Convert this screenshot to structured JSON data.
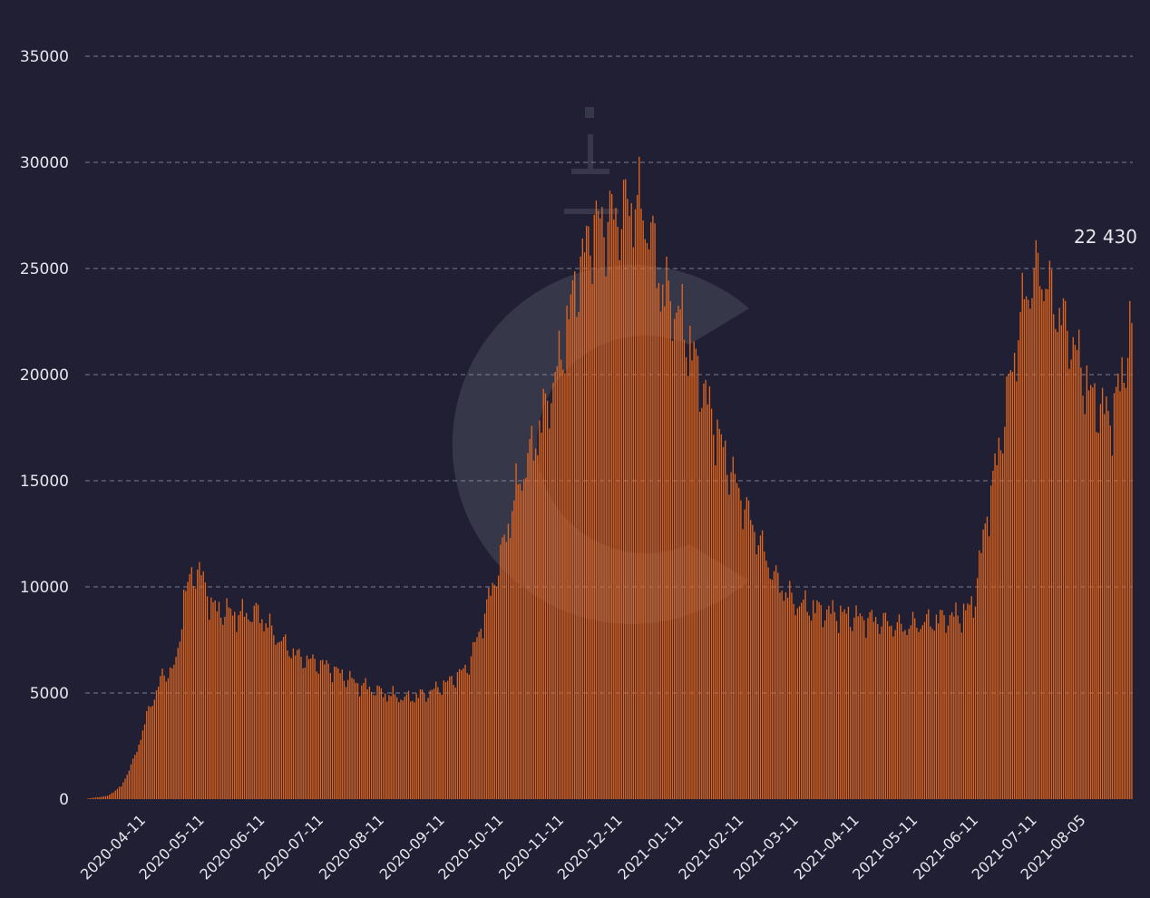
{
  "chart_data": {
    "type": "bar",
    "title": "",
    "xlabel": "",
    "ylabel": "",
    "ylim": [
      0,
      35000
    ],
    "yticks": [
      "0",
      "5000",
      "10000",
      "15000",
      "20000",
      "25000",
      "30000",
      "35000"
    ],
    "ytick_values": [
      0,
      5000,
      10000,
      15000,
      20000,
      25000,
      30000,
      35000
    ],
    "grid": true,
    "x_start_date": "2020-03-15",
    "x_end_date": "2021-08-31",
    "x_tick_labels": [
      "2020-04-11",
      "2020-05-11",
      "2020-06-11",
      "2020-07-11",
      "2020-08-11",
      "2020-09-11",
      "2020-10-11",
      "2020-11-11",
      "2020-12-11",
      "2021-01-11",
      "2021-02-11",
      "2021-03-11",
      "2021-04-11",
      "2021-05-11",
      "2021-06-11",
      "2021-07-11",
      "2021-08-05"
    ],
    "last_value_label": "22 430",
    "bar_color": "#e0651f",
    "background_color": "#201f33",
    "anchors": [
      [
        "2020-03-15",
        30
      ],
      [
        "2020-03-25",
        150
      ],
      [
        "2020-04-01",
        600
      ],
      [
        "2020-04-08",
        2000
      ],
      [
        "2020-04-15",
        4200
      ],
      [
        "2020-04-22",
        5800
      ],
      [
        "2020-04-29",
        6300
      ],
      [
        "2020-05-03",
        9500
      ],
      [
        "2020-05-08",
        10800
      ],
      [
        "2020-05-12",
        10600
      ],
      [
        "2020-05-18",
        9000
      ],
      [
        "2020-06-01",
        8700
      ],
      [
        "2020-06-10",
        8800
      ],
      [
        "2020-06-20",
        7600
      ],
      [
        "2020-07-01",
        6700
      ],
      [
        "2020-07-15",
        6300
      ],
      [
        "2020-08-01",
        5400
      ],
      [
        "2020-08-15",
        4950
      ],
      [
        "2020-08-25",
        4750
      ],
      [
        "2020-09-05",
        5000
      ],
      [
        "2020-09-15",
        5500
      ],
      [
        "2020-09-25",
        6200
      ],
      [
        "2020-10-01",
        7800
      ],
      [
        "2020-10-11",
        11000
      ],
      [
        "2020-10-20",
        14500
      ],
      [
        "2020-11-01",
        17500
      ],
      [
        "2020-11-11",
        20500
      ],
      [
        "2020-11-20",
        24500
      ],
      [
        "2020-11-28",
        27000
      ],
      [
        "2020-12-11",
        27500
      ],
      [
        "2020-12-20",
        28300
      ],
      [
        "2020-12-27",
        27000
      ],
      [
        "2021-01-03",
        24000
      ],
      [
        "2021-01-11",
        23000
      ],
      [
        "2021-01-20",
        20500
      ],
      [
        "2021-02-01",
        17000
      ],
      [
        "2021-02-11",
        14500
      ],
      [
        "2021-02-20",
        12500
      ],
      [
        "2021-03-01",
        10500
      ],
      [
        "2021-03-11",
        9300
      ],
      [
        "2021-03-25",
        8900
      ],
      [
        "2021-04-11",
        8600
      ],
      [
        "2021-04-25",
        8400
      ],
      [
        "2021-05-05",
        8100
      ],
      [
        "2021-05-15",
        8300
      ],
      [
        "2021-05-25",
        8500
      ],
      [
        "2021-06-05",
        8700
      ],
      [
        "2021-06-11",
        9200
      ],
      [
        "2021-06-18",
        13500
      ],
      [
        "2021-06-25",
        17000
      ],
      [
        "2021-07-01",
        20500
      ],
      [
        "2021-07-08",
        24000
      ],
      [
        "2021-07-15",
        25000
      ],
      [
        "2021-07-22",
        23500
      ],
      [
        "2021-08-01",
        21500
      ],
      [
        "2021-08-10",
        19000
      ],
      [
        "2021-08-20",
        18000
      ],
      [
        "2021-08-25",
        19500
      ],
      [
        "2021-08-31",
        22430
      ]
    ]
  }
}
